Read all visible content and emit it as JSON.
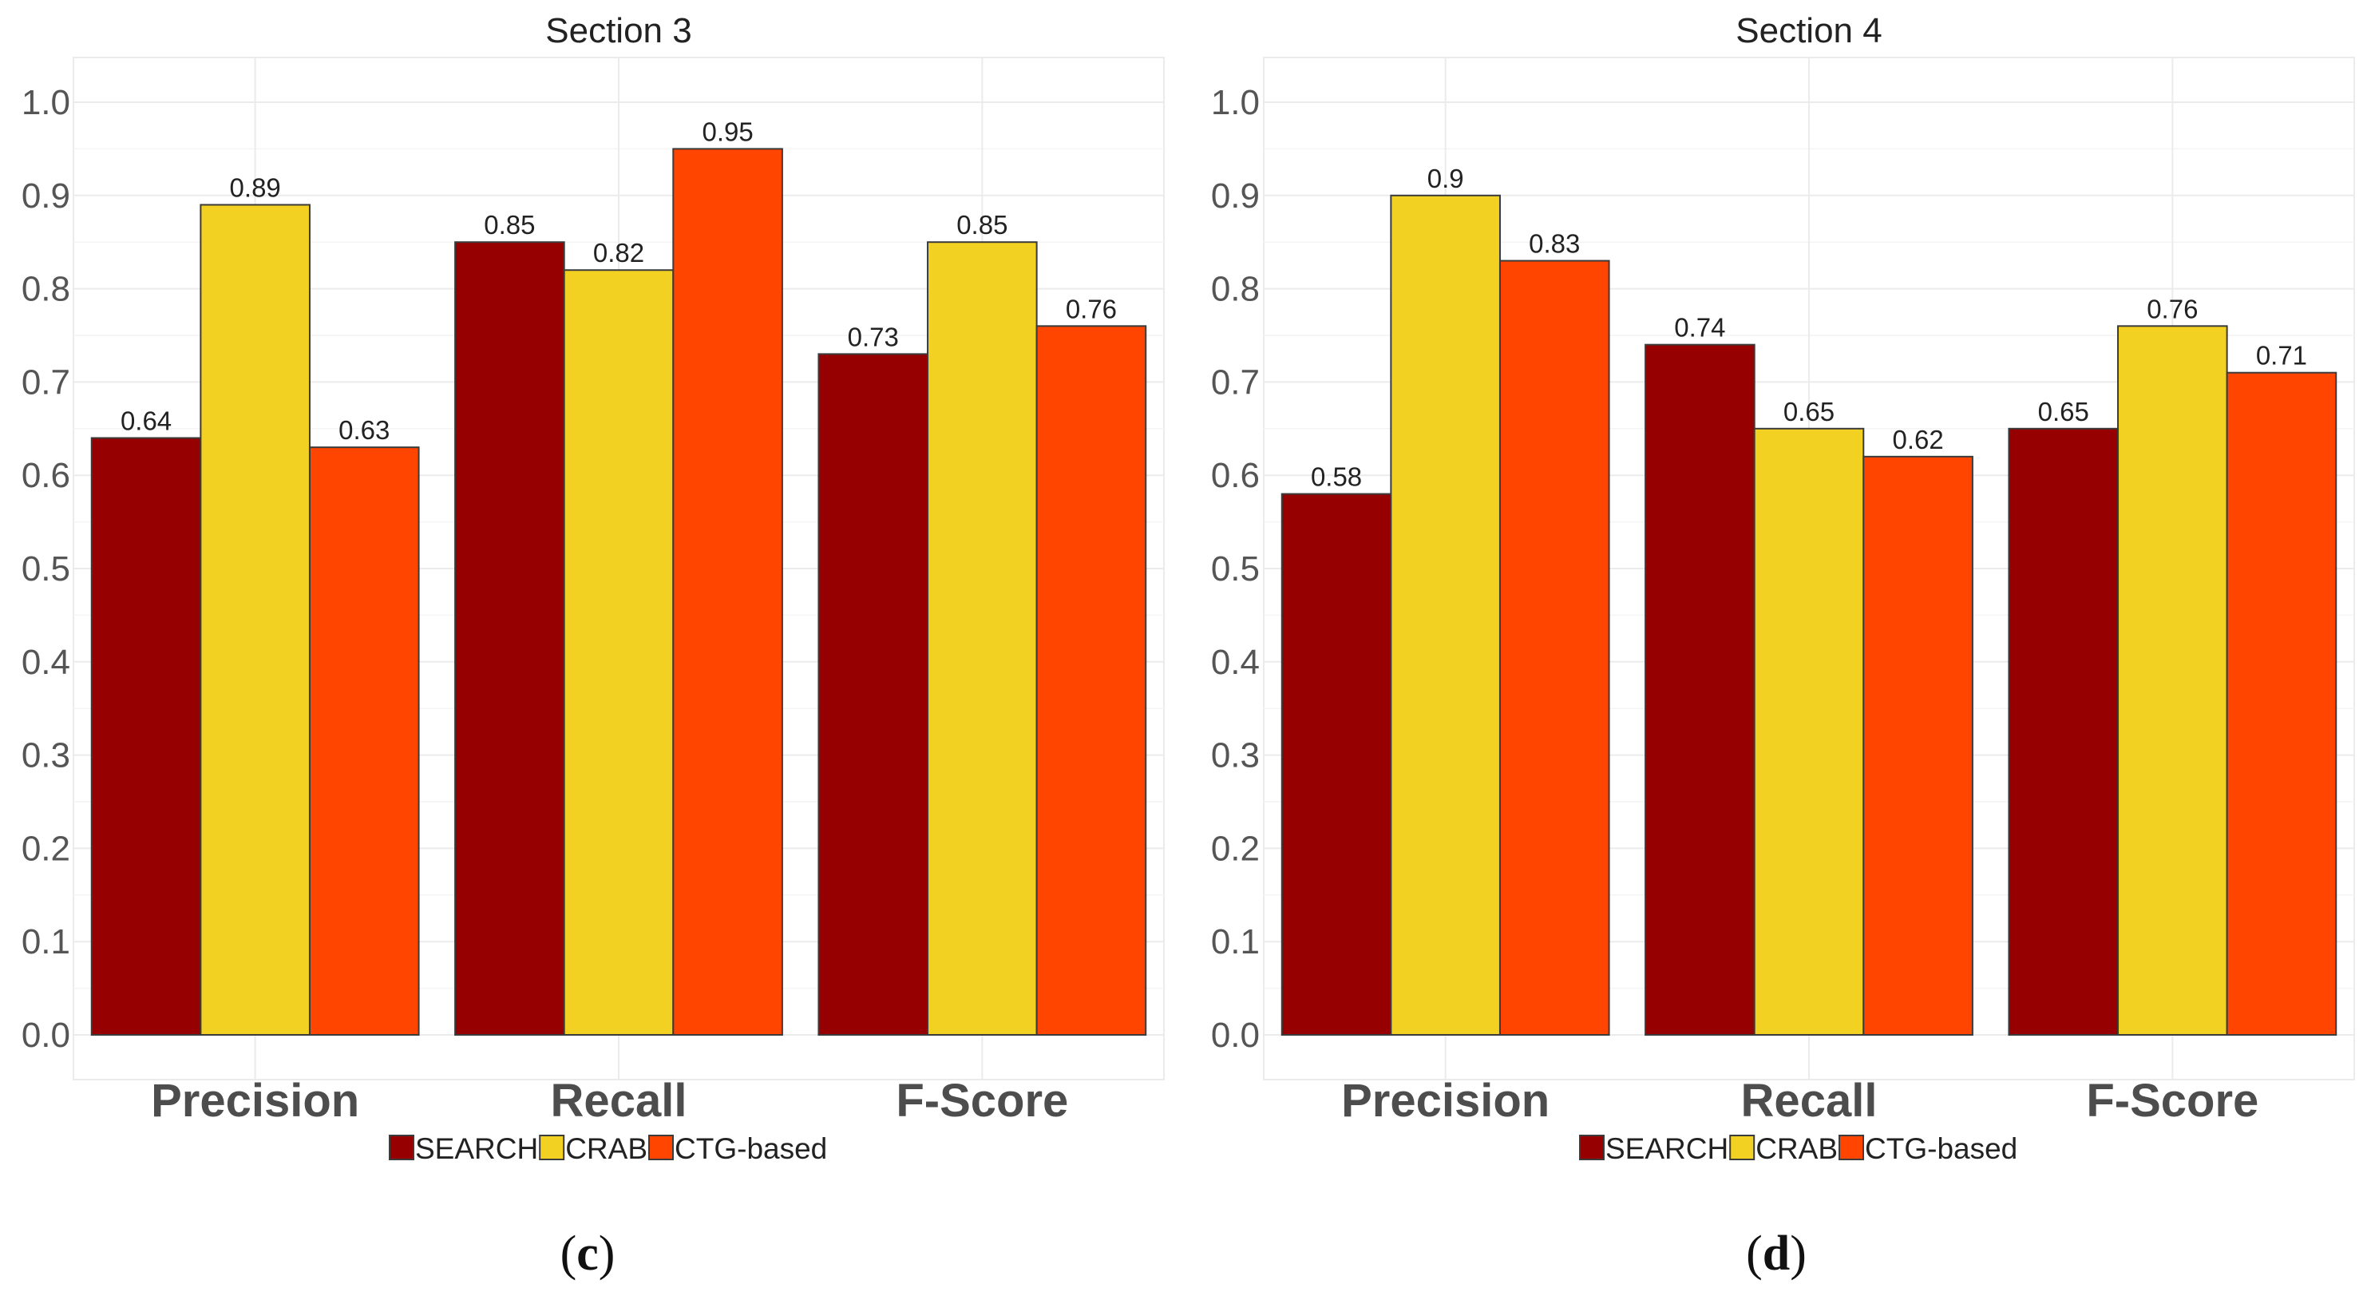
{
  "chart_data": [
    {
      "type": "bar",
      "title": "Section 3",
      "caption_letter": "c",
      "categories": [
        "Precision",
        "Recall",
        "F-Score"
      ],
      "series": [
        {
          "name": "SEARCH",
          "color": "#960000",
          "values": [
            0.64,
            0.85,
            0.73
          ],
          "labels": [
            "0.64",
            "0.85",
            "0.73"
          ]
        },
        {
          "name": "CRAB",
          "color": "#F3D122",
          "values": [
            0.89,
            0.82,
            0.85
          ],
          "labels": [
            "0.89",
            "0.82",
            "0.85"
          ]
        },
        {
          "name": "CTG-based",
          "color": "#FF4500",
          "values": [
            0.63,
            0.95,
            0.76
          ],
          "labels": [
            "0.63",
            "0.95",
            "0.76"
          ]
        }
      ],
      "yticks": [
        "0.0",
        "0.1",
        "0.2",
        "0.3",
        "0.4",
        "0.5",
        "0.6",
        "0.7",
        "0.8",
        "0.9",
        "1.0"
      ],
      "ylim": [
        0,
        1.0
      ],
      "xlabel": "",
      "ylabel": "",
      "grid": true,
      "legend_position": "bottom"
    },
    {
      "type": "bar",
      "title": "Section 4",
      "caption_letter": "d",
      "categories": [
        "Precision",
        "Recall",
        "F-Score"
      ],
      "series": [
        {
          "name": "SEARCH",
          "color": "#960000",
          "values": [
            0.58,
            0.74,
            0.65
          ],
          "labels": [
            "0.58",
            "0.74",
            "0.65"
          ]
        },
        {
          "name": "CRAB",
          "color": "#F3D122",
          "values": [
            0.9,
            0.65,
            0.76
          ],
          "labels": [
            "0.9",
            "0.65",
            "0.76"
          ]
        },
        {
          "name": "CTG-based",
          "color": "#FF4500",
          "values": [
            0.83,
            0.62,
            0.71
          ],
          "labels": [
            "0.83",
            "0.62",
            "0.71"
          ]
        }
      ],
      "yticks": [
        "0.0",
        "0.1",
        "0.2",
        "0.3",
        "0.4",
        "0.5",
        "0.6",
        "0.7",
        "0.8",
        "0.9",
        "1.0"
      ],
      "ylim": [
        0,
        1.0
      ],
      "xlabel": "",
      "ylabel": "",
      "grid": true,
      "legend_position": "bottom"
    }
  ]
}
